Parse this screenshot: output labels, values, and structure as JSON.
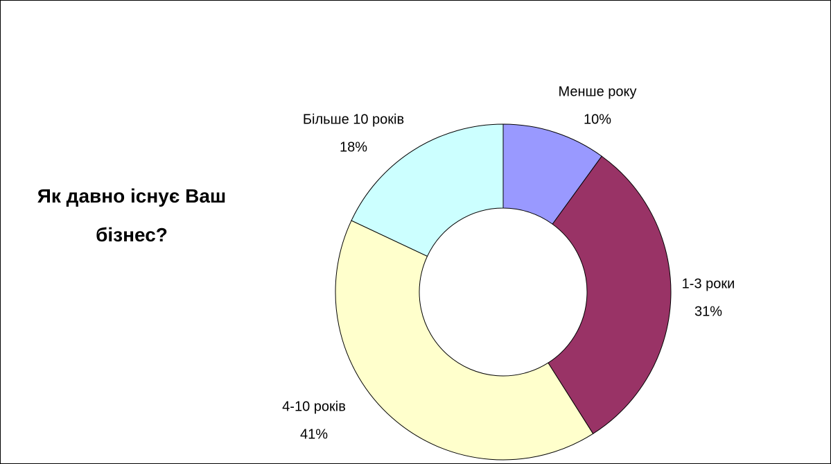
{
  "chart_data": {
    "type": "donut",
    "title": "Як давно існує Ваш бізнес?",
    "categories": [
      "Менше року",
      "1-3 роки",
      "4-10 років",
      "Більше 10 років"
    ],
    "values": [
      10,
      31,
      41,
      18
    ],
    "value_labels": [
      "10%",
      "31%",
      "41%",
      "18%"
    ],
    "colors": [
      "#9999ff",
      "#993366",
      "#ffffcc",
      "#ccffff"
    ]
  }
}
